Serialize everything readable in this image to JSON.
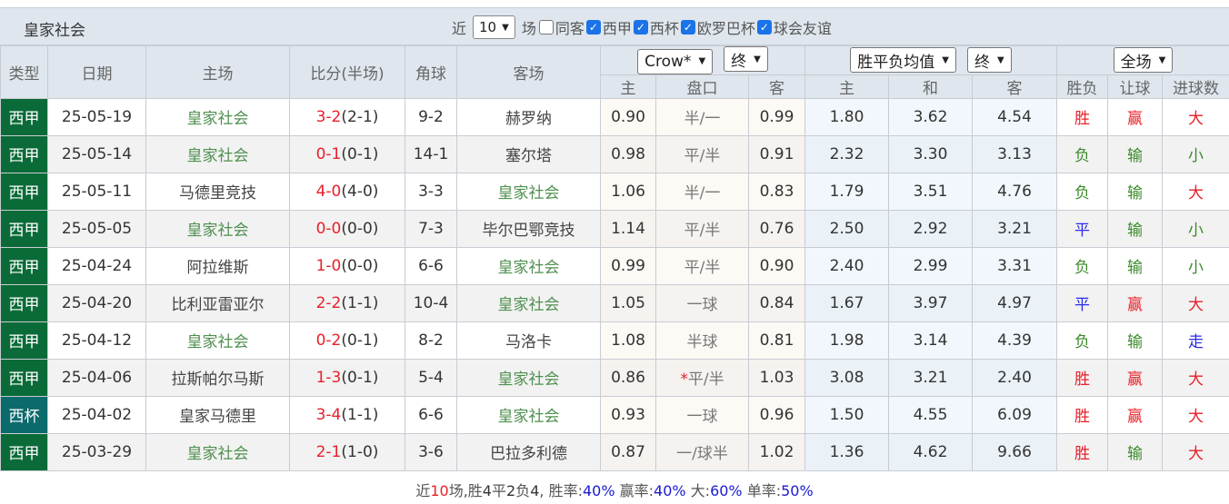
{
  "header": {
    "title": "皇家社会",
    "near_label": "近",
    "count_value": "10",
    "games_label": "场",
    "filters": [
      {
        "label": "同客",
        "checked": false
      },
      {
        "label": "西甲",
        "checked": true
      },
      {
        "label": "西杯",
        "checked": true
      },
      {
        "label": "欧罗巴杯",
        "checked": true
      },
      {
        "label": "球会友谊",
        "checked": true
      }
    ]
  },
  "columns": {
    "type": "类型",
    "date": "日期",
    "home": "主场",
    "score": "比分(半场)",
    "corner": "角球",
    "away": "客场",
    "hc_company": "Crow*",
    "hc_time": "终",
    "eu_type": "胜平负均值",
    "eu_time": "终",
    "period": "全场",
    "hc_home": "主",
    "hc_line": "盘口",
    "hc_away": "客",
    "eu_home": "主",
    "eu_draw": "和",
    "eu_away": "客",
    "res_wl": "胜负",
    "res_hc": "让球",
    "res_goals": "进球数"
  },
  "focus_team": "皇家社会",
  "rows": [
    {
      "type": "西甲",
      "date": "25-05-19",
      "home": "皇家社会",
      "score": "3-2",
      "half": "(2-1)",
      "corner": "9-2",
      "away": "赫罗纳",
      "hh": "0.90",
      "line": "半/一",
      "ha": "0.99",
      "eh": "1.80",
      "ed": "3.62",
      "ea": "4.54",
      "wl": "胜",
      "hc": "赢",
      "goals": "大"
    },
    {
      "type": "西甲",
      "date": "25-05-14",
      "home": "皇家社会",
      "score": "0-1",
      "half": "(0-1)",
      "corner": "14-1",
      "away": "塞尔塔",
      "hh": "0.98",
      "line": "平/半",
      "ha": "0.91",
      "eh": "2.32",
      "ed": "3.30",
      "ea": "3.13",
      "wl": "负",
      "hc": "输",
      "goals": "小"
    },
    {
      "type": "西甲",
      "date": "25-05-11",
      "home": "马德里竞技",
      "score": "4-0",
      "half": "(4-0)",
      "corner": "3-3",
      "away": "皇家社会",
      "hh": "1.06",
      "line": "半/一",
      "ha": "0.83",
      "eh": "1.79",
      "ed": "3.51",
      "ea": "4.76",
      "wl": "负",
      "hc": "输",
      "goals": "大"
    },
    {
      "type": "西甲",
      "date": "25-05-05",
      "home": "皇家社会",
      "score": "0-0",
      "half": "(0-0)",
      "corner": "7-3",
      "away": "毕尔巴鄂竞技",
      "hh": "1.14",
      "line": "平/半",
      "ha": "0.76",
      "eh": "2.50",
      "ed": "2.92",
      "ea": "3.21",
      "wl": "平",
      "hc": "输",
      "goals": "小"
    },
    {
      "type": "西甲",
      "date": "25-04-24",
      "home": "阿拉维斯",
      "score": "1-0",
      "half": "(0-0)",
      "corner": "6-6",
      "away": "皇家社会",
      "hh": "0.99",
      "line": "平/半",
      "ha": "0.90",
      "eh": "2.40",
      "ed": "2.99",
      "ea": "3.31",
      "wl": "负",
      "hc": "输",
      "goals": "小"
    },
    {
      "type": "西甲",
      "date": "25-04-20",
      "home": "比利亚雷亚尔",
      "score": "2-2",
      "half": "(1-1)",
      "corner": "10-4",
      "away": "皇家社会",
      "hh": "1.05",
      "line": "一球",
      "ha": "0.84",
      "eh": "1.67",
      "ed": "3.97",
      "ea": "4.97",
      "wl": "平",
      "hc": "赢",
      "goals": "大"
    },
    {
      "type": "西甲",
      "date": "25-04-12",
      "home": "皇家社会",
      "score": "0-2",
      "half": "(0-1)",
      "corner": "8-2",
      "away": "马洛卡",
      "hh": "1.08",
      "line": "半球",
      "ha": "0.81",
      "eh": "1.98",
      "ed": "3.14",
      "ea": "4.39",
      "wl": "负",
      "hc": "输",
      "goals": "走"
    },
    {
      "type": "西甲",
      "date": "25-04-06",
      "home": "拉斯帕尔马斯",
      "score": "1-3",
      "half": "(0-1)",
      "corner": "5-4",
      "away": "皇家社会",
      "hh": "0.86",
      "line_mark": "*",
      "line": "平/半",
      "ha": "1.03",
      "eh": "3.08",
      "ed": "3.21",
      "ea": "2.40",
      "wl": "胜",
      "hc": "赢",
      "goals": "大"
    },
    {
      "type": "西杯",
      "date": "25-04-02",
      "home": "皇家马德里",
      "score": "3-4",
      "half": "(1-1)",
      "corner": "6-6",
      "away": "皇家社会",
      "hh": "0.93",
      "line": "一球",
      "ha": "0.96",
      "eh": "1.50",
      "ed": "4.55",
      "ea": "6.09",
      "wl": "胜",
      "hc": "赢",
      "goals": "大"
    },
    {
      "type": "西甲",
      "date": "25-03-29",
      "home": "皇家社会",
      "score": "2-1",
      "half": "(1-0)",
      "corner": "3-6",
      "away": "巴拉多利德",
      "hh": "0.87",
      "line": "一/球半",
      "ha": "1.02",
      "eh": "1.36",
      "ed": "4.62",
      "ea": "9.66",
      "wl": "胜",
      "hc": "输",
      "goals": "大"
    }
  ],
  "summary": {
    "p1": "近",
    "games": "10",
    "p2": "场,胜",
    "w": "4",
    "p3": "平",
    "d": "2",
    "p4": "负",
    "l": "4",
    "p5": ", 胜率:",
    "win_rate": "40%",
    "p6": " 赢率:",
    "hc_rate": "40%",
    "p7": " 大:",
    "big_rate": "60%",
    "p8": " 单率:",
    "odd_rate": "50%"
  },
  "colors": {
    "win": "#e8202a",
    "lose": "#3a8a2a",
    "draw": "#2a2aee",
    "league": "#0a6b38",
    "cup": "#0b6a6c"
  }
}
